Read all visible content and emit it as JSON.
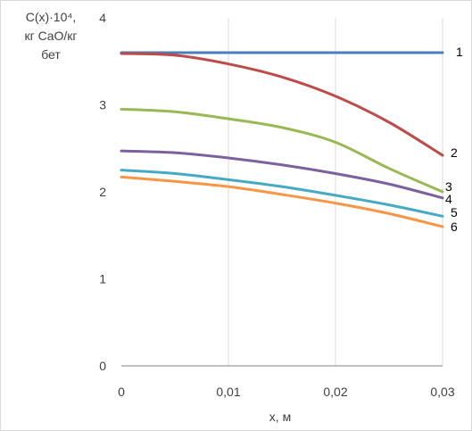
{
  "chart_data": {
    "type": "line",
    "ylabel_lines": [
      "C(x)·10⁴,",
      "кг CaO/кг",
      "бет"
    ],
    "xlabel": "x, м",
    "xlim": [
      0,
      0.03
    ],
    "ylim": [
      0,
      4
    ],
    "xticks": [
      0,
      0.01,
      0.02,
      0.03
    ],
    "xtick_labels": [
      "0",
      "0,01",
      "0,02",
      "0,03"
    ],
    "yticks": [
      0,
      1,
      2,
      3,
      4
    ],
    "ytick_labels": [
      "0",
      "1",
      "2",
      "3",
      "4"
    ],
    "grid": "vertical",
    "series": [
      {
        "name": "1",
        "color": "#4a7ebb",
        "x": [
          0,
          0.005,
          0.01,
          0.015,
          0.02,
          0.025,
          0.03
        ],
        "y": [
          3.6,
          3.6,
          3.6,
          3.6,
          3.6,
          3.6,
          3.6
        ]
      },
      {
        "name": "2",
        "color": "#be4b48",
        "x": [
          0,
          0.005,
          0.01,
          0.015,
          0.02,
          0.025,
          0.03
        ],
        "y": [
          3.59,
          3.57,
          3.47,
          3.32,
          3.1,
          2.8,
          2.42
        ]
      },
      {
        "name": "3",
        "color": "#98b954",
        "x": [
          0,
          0.005,
          0.01,
          0.015,
          0.02,
          0.025,
          0.03
        ],
        "y": [
          2.95,
          2.92,
          2.84,
          2.74,
          2.57,
          2.27,
          2.0
        ]
      },
      {
        "name": "4",
        "color": "#7d60a0",
        "x": [
          0,
          0.005,
          0.01,
          0.015,
          0.02,
          0.025,
          0.03
        ],
        "y": [
          2.47,
          2.45,
          2.39,
          2.31,
          2.21,
          2.09,
          1.93
        ]
      },
      {
        "name": "5",
        "color": "#46aac5",
        "x": [
          0,
          0.005,
          0.01,
          0.015,
          0.02,
          0.025,
          0.03
        ],
        "y": [
          2.25,
          2.21,
          2.14,
          2.06,
          1.96,
          1.85,
          1.72
        ]
      },
      {
        "name": "6",
        "color": "#f79646",
        "x": [
          0,
          0.005,
          0.01,
          0.015,
          0.02,
          0.025,
          0.03
        ],
        "y": [
          2.17,
          2.12,
          2.06,
          1.97,
          1.87,
          1.75,
          1.6
        ]
      }
    ]
  }
}
